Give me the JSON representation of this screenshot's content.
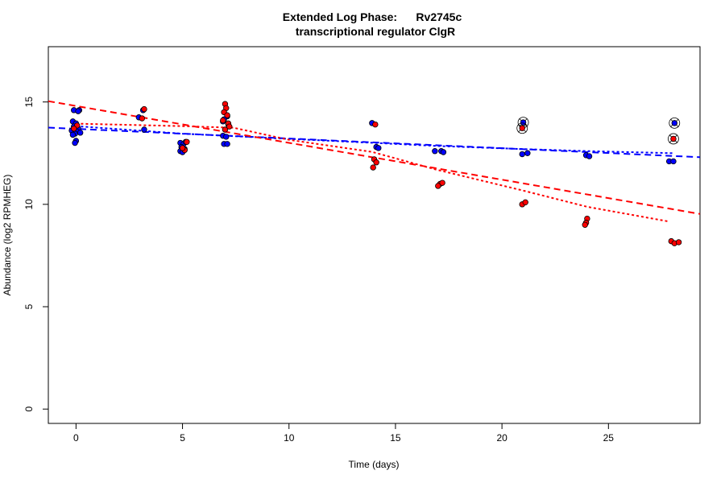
{
  "chart_data": {
    "type": "scatter",
    "title": "Extended Log Phase:      Rv2745c",
    "subtitle": "transcriptional regulator ClgR",
    "xlabel": "Time  (days)",
    "ylabel": "Abundance  (log2 RPMHEG)",
    "xlim": [
      -1.3,
      29.3
    ],
    "ylim": [
      -0.7,
      17.7
    ],
    "xticks": [
      0,
      5,
      10,
      15,
      20,
      25
    ],
    "yticks": [
      0,
      5,
      10,
      15
    ],
    "grid": false,
    "colors": {
      "blue": "#0000ff",
      "red": "#ff0000"
    },
    "series": [
      {
        "color": "#0000ff",
        "points": [
          [
            -0.1,
            14.6
          ],
          [
            0.15,
            14.6
          ],
          [
            0.1,
            14.55
          ],
          [
            -0.15,
            14.05
          ],
          [
            0.0,
            13.95
          ],
          [
            -0.1,
            13.8
          ],
          [
            0.1,
            13.7
          ],
          [
            -0.2,
            13.6
          ],
          [
            0.05,
            13.55
          ],
          [
            -0.05,
            13.45
          ],
          [
            0.2,
            13.5
          ],
          [
            -0.15,
            13.4
          ],
          [
            0.0,
            13.1
          ],
          [
            -0.05,
            13.0
          ],
          [
            2.95,
            14.25
          ],
          [
            3.15,
            14.6
          ],
          [
            3.2,
            13.65
          ],
          [
            4.9,
            13.0
          ],
          [
            5.05,
            12.95
          ],
          [
            4.95,
            12.8
          ],
          [
            5.1,
            12.7
          ],
          [
            4.9,
            12.6
          ],
          [
            5.0,
            12.55
          ],
          [
            5.15,
            13.05
          ],
          [
            6.9,
            14.05
          ],
          [
            7.1,
            14.3
          ],
          [
            6.95,
            14.15
          ],
          [
            7.15,
            13.9
          ],
          [
            6.9,
            13.35
          ],
          [
            7.05,
            13.3
          ],
          [
            6.95,
            12.95
          ],
          [
            7.1,
            12.95
          ],
          [
            13.9,
            13.97
          ],
          [
            14.1,
            12.8
          ],
          [
            14.2,
            12.75
          ],
          [
            16.85,
            12.6
          ],
          [
            17.15,
            12.6
          ],
          [
            17.25,
            12.55
          ],
          [
            20.95,
            12.45
          ],
          [
            21.2,
            12.5
          ],
          [
            23.95,
            12.4
          ],
          [
            24.1,
            12.35
          ],
          [
            27.85,
            12.1
          ],
          [
            28.05,
            12.1
          ]
        ],
        "outliers": [
          [
            21.0,
            14.0
          ],
          [
            28.1,
            13.97
          ]
        ],
        "regression": [
          [
            -1.3,
            13.75
          ],
          [
            29.3,
            12.3
          ]
        ],
        "loess": [
          [
            0,
            13.82
          ],
          [
            3,
            13.6
          ],
          [
            5,
            13.45
          ],
          [
            7,
            13.35
          ],
          [
            10,
            13.2
          ],
          [
            14,
            13.0
          ],
          [
            17,
            12.85
          ],
          [
            21,
            12.7
          ],
          [
            24,
            12.6
          ],
          [
            28,
            12.5
          ]
        ]
      },
      {
        "color": "#ff0000",
        "points": [
          [
            0.05,
            13.85
          ],
          [
            -0.1,
            13.7
          ],
          [
            3.2,
            14.65
          ],
          [
            3.1,
            14.2
          ],
          [
            5.1,
            12.65
          ],
          [
            5.2,
            13.05
          ],
          [
            5.0,
            12.75
          ],
          [
            7.0,
            14.9
          ],
          [
            7.05,
            14.7
          ],
          [
            6.95,
            14.5
          ],
          [
            7.1,
            14.35
          ],
          [
            6.9,
            14.1
          ],
          [
            7.15,
            13.95
          ],
          [
            7.0,
            13.65
          ],
          [
            7.2,
            13.8
          ],
          [
            14.05,
            13.9
          ],
          [
            14.0,
            12.2
          ],
          [
            14.1,
            12.05
          ],
          [
            13.95,
            11.8
          ],
          [
            17.1,
            11.0
          ],
          [
            17.0,
            10.9
          ],
          [
            17.2,
            11.05
          ],
          [
            20.95,
            10.0
          ],
          [
            21.1,
            10.1
          ],
          [
            24.0,
            9.3
          ],
          [
            23.95,
            9.1
          ],
          [
            23.9,
            9.0
          ],
          [
            27.95,
            8.2
          ],
          [
            28.1,
            8.1
          ],
          [
            28.3,
            8.15
          ]
        ],
        "outliers": [
          [
            20.95,
            13.72
          ],
          [
            28.05,
            13.2
          ]
        ],
        "regression": [
          [
            -1.3,
            15.04
          ],
          [
            29.3,
            9.53
          ]
        ],
        "loess": [
          [
            0,
            13.94
          ],
          [
            5,
            13.82
          ],
          [
            7.4,
            13.74
          ],
          [
            10,
            13.15
          ],
          [
            13.9,
            12.56
          ],
          [
            16.9,
            11.7
          ],
          [
            21,
            10.67
          ],
          [
            24,
            9.88
          ],
          [
            27.8,
            9.17
          ]
        ]
      }
    ]
  }
}
